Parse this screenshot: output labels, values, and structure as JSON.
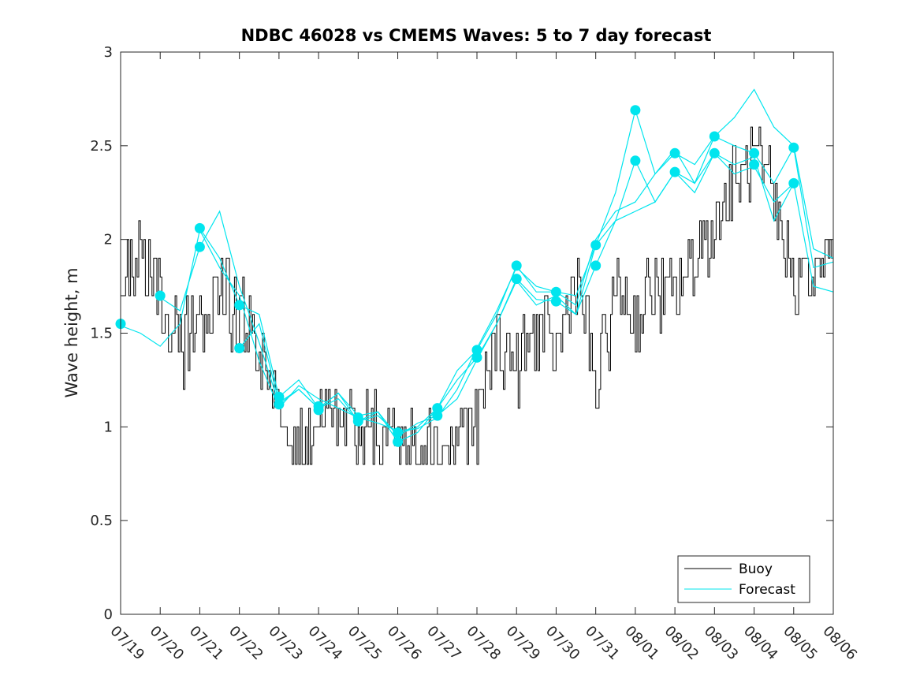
{
  "chart_data": {
    "type": "line",
    "title": "NDBC 46028 vs CMEMS Waves: 5 to 7 day forecast",
    "xlabel": "",
    "ylabel": "Wave height, m",
    "ylim": [
      0,
      3
    ],
    "yticks": [
      0,
      0.5,
      1,
      1.5,
      2,
      2.5,
      3
    ],
    "ytick_labels": [
      "0",
      "0.5",
      "1",
      "1.5",
      "2",
      "2.5",
      "3"
    ],
    "x_start": "07/19",
    "xticks": [
      "07/19",
      "07/20",
      "07/21",
      "07/22",
      "07/23",
      "07/24",
      "07/25",
      "07/26",
      "07/27",
      "07/28",
      "07/29",
      "07/30",
      "07/31",
      "08/01",
      "08/02",
      "08/03",
      "08/04",
      "08/05",
      "08/06"
    ],
    "grid": false,
    "legend": {
      "placement": "bottom-right",
      "entries": [
        {
          "label": "Buoy",
          "color": "#000000"
        },
        {
          "label": "Forecast",
          "color": "#00e5ee"
        }
      ]
    },
    "buoy": {
      "name": "Buoy",
      "color": "#000000",
      "x": [
        "07/19",
        "07/19 12:00",
        "07/20",
        "07/20 12:00",
        "07/21",
        "07/21 12:00",
        "07/22",
        "07/22 12:00",
        "07/23",
        "07/23 12:00",
        "07/24",
        "07/24 12:00",
        "07/25",
        "07/25 12:00",
        "07/26",
        "07/26 12:00",
        "07/27",
        "07/27 12:00",
        "07/28",
        "07/28 12:00",
        "07/29",
        "07/29 12:00",
        "07/30",
        "07/30 12:00",
        "07/31",
        "07/31 12:00",
        "08/01",
        "08/01 12:00",
        "08/02",
        "08/02 12:00",
        "08/03",
        "08/03 12:00",
        "08/04",
        "08/04 12:00",
        "08/05",
        "08/05 12:00",
        "08/06"
      ],
      "values": [
        1.8,
        1.9,
        1.7,
        1.4,
        1.6,
        1.7,
        1.6,
        1.3,
        1.0,
        0.9,
        1.0,
        1.0,
        1.0,
        1.0,
        0.95,
        0.9,
        0.9,
        0.95,
        1.0,
        1.5,
        1.3,
        1.5,
        1.4,
        1.8,
        1.2,
        1.7,
        1.6,
        1.7,
        1.7,
        1.9,
        2.1,
        2.3,
        2.4,
        2.2,
        1.8,
        1.8,
        1.9
      ],
      "range": [
        0.8,
        2.6
      ]
    },
    "forecast_series": [
      {
        "x": [
          "07/19",
          "07/19 12:00",
          "07/20",
          "07/20 12:00",
          "07/21",
          "07/21 12:00",
          "07/22",
          "07/22 12:00",
          "07/23",
          "07/23 12:00",
          "07/24",
          "07/24 12:00",
          "07/25",
          "07/25 12:00",
          "07/26",
          "07/26 12:00",
          "07/27",
          "07/27 12:00",
          "07/28",
          "07/28 12:00",
          "07/29",
          "07/29 12:00",
          "07/30",
          "07/30 12:00",
          "07/31",
          "07/31 12:00",
          "08/01",
          "08/01 12:00",
          "08/02",
          "08/02 12:00",
          "08/03",
          "08/03 12:00",
          "08/04",
          "08/04 12:00",
          "08/05",
          "08/05 12:00",
          "08/06"
        ],
        "values": [
          1.54,
          1.5,
          1.43,
          1.55,
          2.05,
          1.85,
          1.7,
          1.35,
          1.1,
          1.22,
          1.15,
          1.1,
          1.05,
          1.02,
          0.98,
          0.99,
          1.05,
          1.2,
          1.42,
          1.62,
          1.85,
          1.75,
          1.72,
          1.65,
          2.0,
          2.15,
          2.2,
          2.35,
          2.48,
          2.3,
          2.55,
          2.65,
          2.8,
          2.6,
          2.5,
          1.95,
          1.9
        ]
      },
      {
        "x": [
          "07/20",
          "07/20 12:00",
          "07/21",
          "07/21 12:00",
          "07/22",
          "07/22 12:00",
          "07/23",
          "07/23 12:00",
          "07/24",
          "07/24 12:00",
          "07/25",
          "07/25 12:00",
          "07/26",
          "07/26 12:00",
          "07/27",
          "07/27 12:00",
          "07/28",
          "07/28 12:00",
          "07/29",
          "07/29 12:00",
          "07/30",
          "07/30 12:00",
          "07/31",
          "07/31 12:00",
          "08/01",
          "08/01 12:00",
          "08/02",
          "08/02 12:00",
          "08/03",
          "08/03 12:00",
          "08/04",
          "08/04 12:00",
          "08/05",
          "08/05 12:00",
          "08/06"
        ],
        "values": [
          1.69,
          1.62,
          1.96,
          2.15,
          1.75,
          1.45,
          1.12,
          1.2,
          1.1,
          1.15,
          1.03,
          1.06,
          0.96,
          1.0,
          1.1,
          1.25,
          1.37,
          1.55,
          1.79,
          1.68,
          1.67,
          1.6,
          1.86,
          2.1,
          2.42,
          2.2,
          2.36,
          2.25,
          2.46,
          2.35,
          2.39,
          2.2,
          2.3,
          1.75,
          1.72
        ]
      },
      {
        "x": [
          "07/21",
          "07/21 12:00",
          "07/22",
          "07/22 12:00",
          "07/23",
          "07/23 12:00",
          "07/24",
          "07/24 12:00",
          "07/25",
          "07/25 12:00",
          "07/26",
          "07/26 12:00",
          "07/27",
          "07/27 12:00",
          "07/28",
          "07/28 12:00",
          "07/29",
          "07/29 12:00",
          "07/30",
          "07/30 12:00",
          "07/31",
          "07/31 12:00",
          "08/01",
          "08/01 12:00",
          "08/02",
          "08/02 12:00",
          "08/03",
          "08/03 12:00",
          "08/04",
          "08/04 12:00",
          "08/05",
          "08/05 12:00",
          "08/06"
        ],
        "values": [
          2.06,
          1.9,
          1.65,
          1.6,
          1.16,
          1.25,
          1.1,
          1.18,
          1.06,
          1.08,
          0.92,
          0.97,
          1.1,
          1.3,
          1.41,
          1.6,
          1.86,
          1.72,
          1.72,
          1.7,
          1.97,
          2.25,
          2.69,
          2.35,
          2.46,
          2.4,
          2.55,
          2.5,
          2.46,
          2.3,
          2.49,
          1.85,
          1.88
        ]
      },
      {
        "x": [
          "07/22",
          "07/22 12:00",
          "07/23",
          "07/23 12:00",
          "07/24",
          "07/24 12:00",
          "07/25",
          "07/25 12:00",
          "07/26",
          "07/26 12:00",
          "07/27",
          "07/27 12:00",
          "07/28",
          "07/28 12:00",
          "07/29",
          "07/29 12:00",
          "07/30",
          "07/30 12:00",
          "07/31",
          "07/31 12:00",
          "08/01",
          "08/01 12:00",
          "08/02",
          "08/02 12:00",
          "08/03",
          "08/03 12:00",
          "08/04",
          "08/04 12:00",
          "08/05"
        ],
        "values": [
          1.42,
          1.55,
          1.13,
          1.2,
          1.1,
          1.18,
          1.03,
          1.08,
          0.95,
          1.02,
          1.06,
          1.15,
          1.36,
          1.55,
          1.78,
          1.65,
          1.7,
          1.6,
          1.97,
          2.1,
          2.15,
          2.2,
          2.36,
          2.3,
          2.46,
          2.4,
          2.44,
          2.1,
          2.3
        ]
      }
    ],
    "markers": {
      "color": "#00e5ee",
      "points": [
        [
          "07/19",
          1.55
        ],
        [
          "07/20",
          1.7
        ],
        [
          "07/21",
          2.06
        ],
        [
          "07/21",
          1.96
        ],
        [
          "07/22",
          1.65
        ],
        [
          "07/22",
          1.42
        ],
        [
          "07/23",
          1.16
        ],
        [
          "07/23",
          1.12
        ],
        [
          "07/24",
          1.11
        ],
        [
          "07/24",
          1.09
        ],
        [
          "07/25",
          1.05
        ],
        [
          "07/25",
          1.03
        ],
        [
          "07/26",
          0.97
        ],
        [
          "07/26",
          0.92
        ],
        [
          "07/27",
          1.1
        ],
        [
          "07/27",
          1.06
        ],
        [
          "07/28",
          1.41
        ],
        [
          "07/28",
          1.37
        ],
        [
          "07/29",
          1.86
        ],
        [
          "07/29",
          1.79
        ],
        [
          "07/30",
          1.72
        ],
        [
          "07/30",
          1.67
        ],
        [
          "07/31",
          1.97
        ],
        [
          "07/31",
          1.86
        ],
        [
          "08/01",
          2.69
        ],
        [
          "08/01",
          2.42
        ],
        [
          "08/02",
          2.46
        ],
        [
          "08/02",
          2.36
        ],
        [
          "08/03",
          2.55
        ],
        [
          "08/03",
          2.46
        ],
        [
          "08/04",
          2.46
        ],
        [
          "08/04",
          2.4
        ],
        [
          "08/05",
          2.49
        ],
        [
          "08/05",
          2.3
        ]
      ]
    }
  }
}
